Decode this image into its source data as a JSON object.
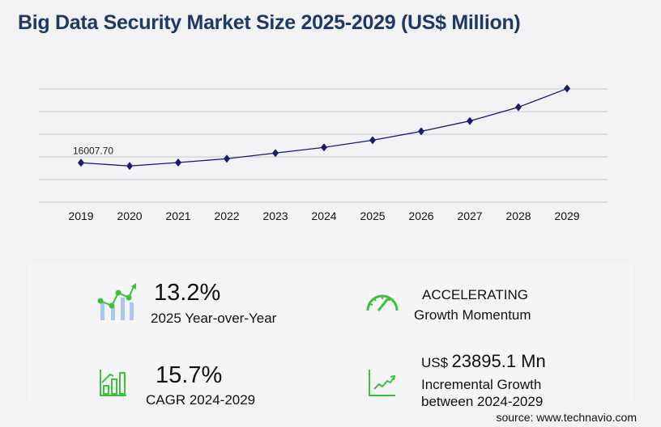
{
  "title": "Big Data Security Market Size 2025-2029 (US$ Million)",
  "chart_data": {
    "type": "line",
    "title": "Big Data Security Market Size 2025-2029 (US$ Million)",
    "categories": [
      "2019",
      "2020",
      "2021",
      "2022",
      "2023",
      "2024",
      "2025",
      "2026",
      "2027",
      "2028",
      "2029"
    ],
    "values": [
      16007.7,
      14700,
      16100,
      17660,
      19950,
      22250,
      25180,
      28780,
      33000,
      38590,
      46145
    ],
    "data_labels": {
      "2019": "16007.70"
    },
    "ylim": [
      0,
      46000
    ],
    "grid": true,
    "y_ticks_shown": false,
    "line_color": "#1a1a6e",
    "marker": "diamond"
  },
  "stats": [
    {
      "value": "13.2%",
      "label": "2025 Year-over-Year",
      "icon": "chart-growth-icon"
    },
    {
      "value": "ACCELERATING",
      "label": "Growth Momentum",
      "icon": "speedometer-icon"
    },
    {
      "value": "15.7%",
      "label": "CAGR 2024-2029",
      "icon": "bar-chart-icon"
    },
    {
      "prefix": "US$",
      "value": "23895.1 Mn",
      "label1": "Incremental Growth",
      "label2": "between 2024-2029",
      "icon": "trend-up-icon"
    }
  ],
  "accent": "#3cc13b",
  "source": "source: www.technavio.com"
}
